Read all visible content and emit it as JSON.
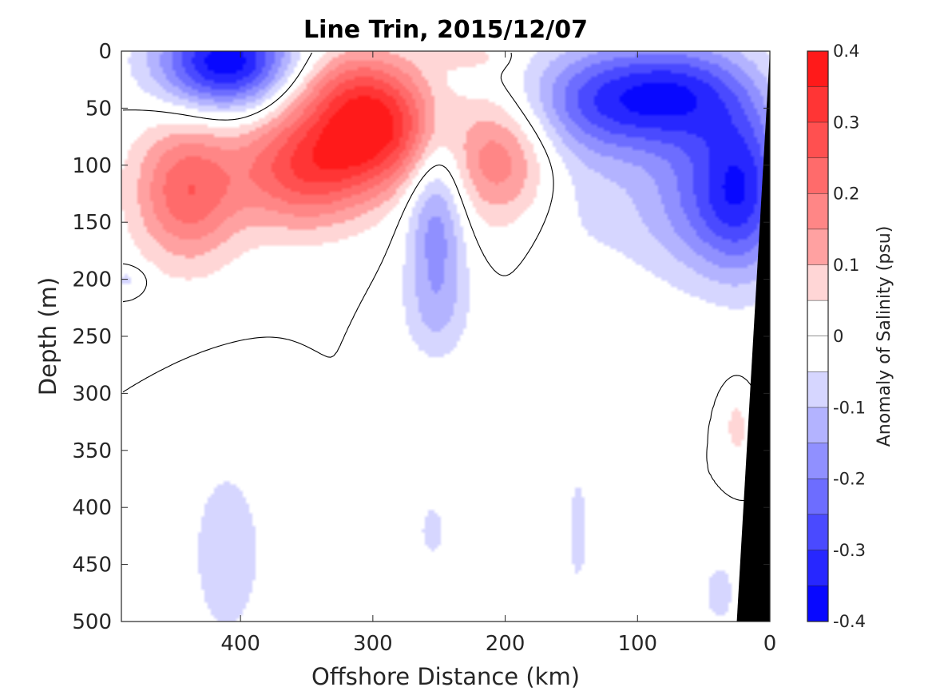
{
  "chart_data": {
    "type": "contour",
    "title": "Line Trin, 2015/12/07",
    "xlabel": "Offshore Distance (km)",
    "ylabel": "Depth (m)",
    "xlim": [
      490,
      0
    ],
    "ylim": [
      0,
      500
    ],
    "x_reversed": true,
    "y_reversed": true,
    "x_ticks": [
      400,
      300,
      200,
      100,
      0
    ],
    "y_ticks": [
      0,
      50,
      100,
      150,
      200,
      250,
      300,
      350,
      400,
      450,
      500
    ],
    "colorbar": {
      "label": "Anomaly of Salinity (psu)",
      "range": [
        -0.4,
        0.4
      ],
      "ticks": [
        0.4,
        0.3,
        0.2,
        0.1,
        0,
        -0.1,
        -0.2,
        -0.3,
        -0.4
      ],
      "ticklabels": [
        "0.4",
        "0.3",
        "0.2",
        "0.1",
        "0",
        "-0.1",
        "-0.2",
        "-0.3",
        "-0.4"
      ],
      "levels": [
        {
          "value": 0.375,
          "color": "#ff1a1a"
        },
        {
          "value": 0.325,
          "color": "#ff3535"
        },
        {
          "value": 0.275,
          "color": "#ff5050"
        },
        {
          "value": 0.225,
          "color": "#ff6b6b"
        },
        {
          "value": 0.175,
          "color": "#ff8686"
        },
        {
          "value": 0.125,
          "color": "#ffa1a1"
        },
        {
          "value": 0.075,
          "color": "#ffd6d6"
        },
        {
          "value": 0.025,
          "color": "#ffffff"
        },
        {
          "value": -0.025,
          "color": "#ffffff"
        },
        {
          "value": -0.075,
          "color": "#d6d6ff"
        },
        {
          "value": -0.125,
          "color": "#b3b3ff"
        },
        {
          "value": -0.175,
          "color": "#9090ff"
        },
        {
          "value": -0.225,
          "color": "#6d6dff"
        },
        {
          "value": -0.275,
          "color": "#4a4aff"
        },
        {
          "value": -0.325,
          "color": "#2727ff"
        },
        {
          "value": -0.375,
          "color": "#0808ff"
        }
      ]
    },
    "zero_contour_color": "#000000",
    "bathymetry_color": "#000000",
    "bathymetry": [
      [
        0,
        0
      ],
      [
        0,
        500
      ],
      [
        25,
        500
      ]
    ],
    "anomaly_features": [
      {
        "x": 410,
        "y": 10,
        "rx": 52,
        "ry": 42,
        "peak": -0.4
      },
      {
        "x": 440,
        "y": 122,
        "rx": 40,
        "ry": 62,
        "peak": 0.24
      },
      {
        "x": 355,
        "y": 102,
        "rx": 48,
        "ry": 52,
        "peak": 0.27
      },
      {
        "x": 305,
        "y": 72,
        "rx": 40,
        "ry": 52,
        "peak": 0.3
      },
      {
        "x": 318,
        "y": 30,
        "rx": 58,
        "ry": 40,
        "peak": 0.13
      },
      {
        "x": 275,
        "y": 70,
        "rx": 25,
        "ry": 40,
        "peak": 0.08
      },
      {
        "x": 205,
        "y": 95,
        "rx": 40,
        "ry": 55,
        "peak": 0.19
      },
      {
        "x": 120,
        "y": 42,
        "rx": 62,
        "ry": 48,
        "peak": -0.28
      },
      {
        "x": 60,
        "y": 35,
        "rx": 48,
        "ry": 45,
        "peak": -0.2
      },
      {
        "x": 20,
        "y": 120,
        "rx": 34,
        "ry": 75,
        "peak": -0.3
      },
      {
        "x": 60,
        "y": 130,
        "rx": 40,
        "ry": 68,
        "peak": -0.14
      },
      {
        "x": 95,
        "y": 68,
        "rx": 20,
        "ry": 20,
        "peak": 0.0
      },
      {
        "x": 252,
        "y": 150,
        "rx": 22,
        "ry": 70,
        "peak": -0.18
      },
      {
        "x": 252,
        "y": 230,
        "rx": 26,
        "ry": 45,
        "peak": -0.08
      },
      {
        "x": 130,
        "y": 130,
        "rx": 55,
        "ry": 70,
        "peak": -0.06
      },
      {
        "x": 410,
        "y": 440,
        "rx": 32,
        "ry": 90,
        "peak": -0.08
      },
      {
        "x": 255,
        "y": 420,
        "rx": 12,
        "ry": 30,
        "peak": -0.07
      },
      {
        "x": 145,
        "y": 420,
        "rx": 10,
        "ry": 65,
        "peak": -0.07
      },
      {
        "x": 38,
        "y": 475,
        "rx": 15,
        "ry": 35,
        "peak": -0.07
      },
      {
        "x": 25,
        "y": 330,
        "rx": 8,
        "ry": 25,
        "peak": 0.08
      },
      {
        "x": 485,
        "y": 200,
        "rx": 14,
        "ry": 12,
        "peak": -0.07
      },
      {
        "x": 225,
        "y": 5,
        "rx": 30,
        "ry": 12,
        "peak": 0.06
      }
    ]
  }
}
